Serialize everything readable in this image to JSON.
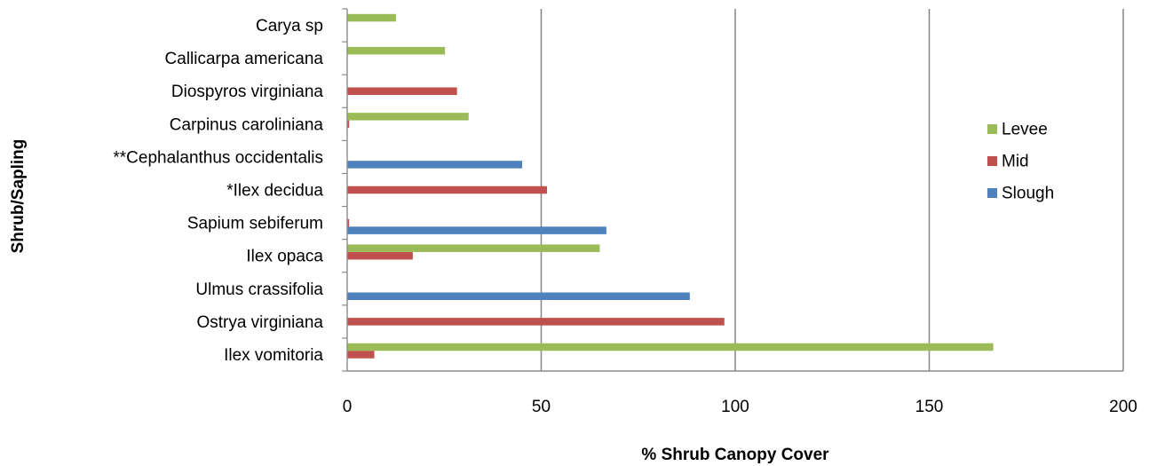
{
  "chart_data": {
    "type": "bar",
    "orientation": "horizontal",
    "title": "",
    "xlabel": "% Shrub Canopy Cover",
    "ylabel": "Shrub/Sapling",
    "xlim": [
      0,
      200
    ],
    "xticks": [
      0,
      50,
      100,
      150,
      200
    ],
    "grid": true,
    "legend_position": "right",
    "categories": [
      "Ilex vomitoria",
      "Ostrya virginiana",
      "Ulmus crassifolia",
      "Ilex opaca",
      "Sapium sebiferum",
      "*Ilex decidua",
      "**Cephalanthus occidentalis",
      "Carpinus caroliniana",
      "Diospyros virginiana",
      "Callicarpa americana",
      "Carya sp"
    ],
    "series": [
      {
        "name": "Slough",
        "color": "#4F81BD",
        "values": [
          0,
          0,
          88.3,
          0,
          66.8,
          0,
          45.1,
          0,
          0,
          0,
          0
        ]
      },
      {
        "name": "Mid",
        "color": "#C0504D",
        "values": [
          7,
          97.2,
          0,
          16.9,
          0.5,
          51.5,
          0,
          0.5,
          28.3,
          0,
          0
        ]
      },
      {
        "name": "Levee",
        "color": "#9BBB59",
        "values": [
          166.5,
          0,
          0,
          65.1,
          0,
          0,
          0,
          31.3,
          0,
          25.2,
          12.6
        ]
      }
    ],
    "legend_order": [
      "Levee",
      "Mid",
      "Slough"
    ]
  }
}
